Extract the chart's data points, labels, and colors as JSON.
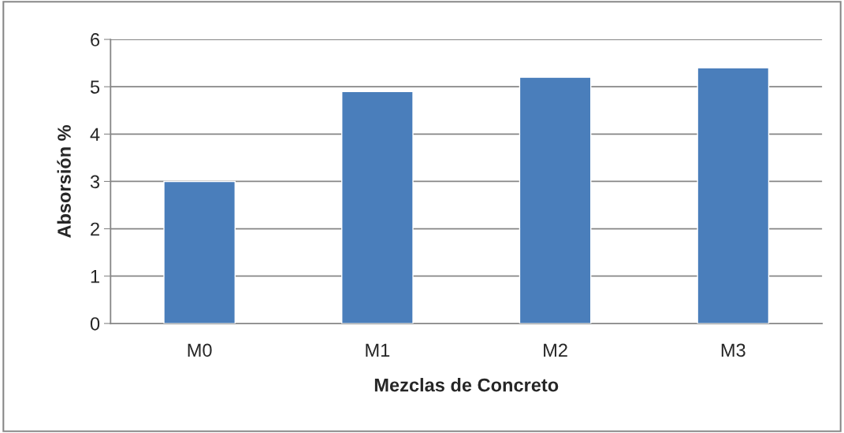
{
  "chart_data": {
    "type": "bar",
    "categories": [
      "M0",
      "M1",
      "M2",
      "M3"
    ],
    "values": [
      3.0,
      4.9,
      5.2,
      5.4
    ],
    "color": "#4a7ebb",
    "xlabel": "Mezclas de Concreto",
    "ylabel": "Absorsión %",
    "ylim": [
      0,
      6
    ],
    "yticks": [
      0,
      1,
      2,
      3,
      4,
      5,
      6
    ],
    "grid": "y",
    "legend": false
  }
}
